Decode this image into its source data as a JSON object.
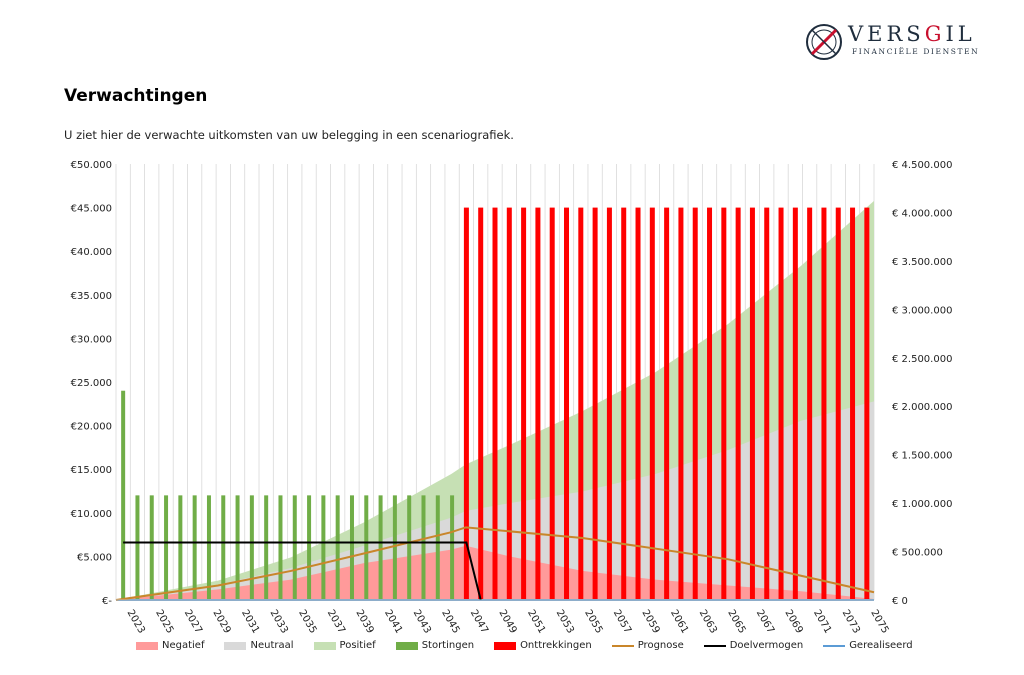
{
  "brand": {
    "name_part1": "VERS",
    "name_part2": "G",
    "name_part3": "IL",
    "tagline": "FINANCIËLE DIENSTEN",
    "accent_color": "#c8102e",
    "dark_color": "#1f2d3d"
  },
  "page": {
    "title": "Verwachtingen",
    "subtitle": "U ziet hier de verwachte uitkomsten van uw belegging in een scenariografiek."
  },
  "legend": [
    {
      "label": "Negatief",
      "kind": "area",
      "color": "#ff9a9a"
    },
    {
      "label": "Neutraal",
      "kind": "area",
      "color": "#d9d9d9"
    },
    {
      "label": "Positief",
      "kind": "area",
      "color": "#c6e0b4"
    },
    {
      "label": "Stortingen",
      "kind": "bar",
      "color": "#70ad47"
    },
    {
      "label": "Onttrekkingen",
      "kind": "bar",
      "color": "#ff0000"
    },
    {
      "label": "Prognose",
      "kind": "line",
      "color": "#c9862a"
    },
    {
      "label": "Doelvermogen",
      "kind": "line",
      "color": "#000000"
    },
    {
      "label": "Gerealiseerd",
      "kind": "line",
      "color": "#5b9bd5"
    }
  ],
  "chart_data": {
    "type": "bar",
    "title": "",
    "xlabel": "",
    "ylabel": "",
    "x_start": 2023,
    "x_end": 2075,
    "x_tick_labels": [
      "2023",
      "2025",
      "2027",
      "2029",
      "2031",
      "2033",
      "2035",
      "2037",
      "2039",
      "2041",
      "2043",
      "2045",
      "2047",
      "2049",
      "2051",
      "2053",
      "2055",
      "2057",
      "2059",
      "2061",
      "2063",
      "2065",
      "2067",
      "2069",
      "2071",
      "2073",
      "2075"
    ],
    "y_left": {
      "lim": [
        0,
        50000
      ],
      "tick_labels": [
        "€-",
        "€5.000",
        "€10.000",
        "€15.000",
        "€20.000",
        "€25.000",
        "€30.000",
        "€35.000",
        "€40.000",
        "€45.000",
        "€50.000"
      ]
    },
    "y_right": {
      "lim": [
        0,
        4500000
      ],
      "tick_labels": [
        "€ 0",
        "€ 500.000",
        "€ 1.000.000",
        "€ 1.500.000",
        "€ 2.000.000",
        "€ 2.500.000",
        "€ 3.000.000",
        "€ 3.500.000",
        "€ 4.000.000",
        "€ 4.500.000"
      ]
    },
    "grid": "vertical",
    "legend_position": "bottom",
    "series": [
      {
        "name": "Stortingen",
        "type": "bar",
        "axis": "left",
        "color": "#70ad47",
        "points": [
          [
            2023,
            24000
          ],
          [
            2024,
            12000
          ],
          [
            2025,
            12000
          ],
          [
            2026,
            12000
          ],
          [
            2027,
            12000
          ],
          [
            2028,
            12000
          ],
          [
            2029,
            12000
          ],
          [
            2030,
            12000
          ],
          [
            2031,
            12000
          ],
          [
            2032,
            12000
          ],
          [
            2033,
            12000
          ],
          [
            2034,
            12000
          ],
          [
            2035,
            12000
          ],
          [
            2036,
            12000
          ],
          [
            2037,
            12000
          ],
          [
            2038,
            12000
          ],
          [
            2039,
            12000
          ],
          [
            2040,
            12000
          ],
          [
            2041,
            12000
          ],
          [
            2042,
            12000
          ],
          [
            2043,
            12000
          ],
          [
            2044,
            12000
          ],
          [
            2045,
            12000
          ],
          [
            2046,
            12000
          ]
        ]
      },
      {
        "name": "Onttrekkingen",
        "type": "bar",
        "axis": "left",
        "color": "#ff0000",
        "x_range": [
          2047,
          2075
        ],
        "value": 45000
      },
      {
        "name": "Negatief",
        "type": "area",
        "axis": "right",
        "color": "#ff9a9a",
        "x": [
          2023,
          2030,
          2035,
          2040,
          2046,
          2047,
          2050,
          2055,
          2060,
          2065,
          2070,
          2075
        ],
        "values": [
          0,
          110000,
          210000,
          380000,
          520000,
          560000,
          450000,
          300000,
          210000,
          150000,
          90000,
          10000
        ]
      },
      {
        "name": "Neutraal",
        "type": "area",
        "axis": "right",
        "color": "#d9d9d9",
        "x": [
          2023,
          2030,
          2035,
          2040,
          2046,
          2047,
          2050,
          2055,
          2060,
          2065,
          2070,
          2075
        ],
        "values": [
          0,
          160000,
          330000,
          560000,
          850000,
          920000,
          1000000,
          1120000,
          1300000,
          1550000,
          1850000,
          2050000
        ]
      },
      {
        "name": "Positief",
        "type": "area",
        "axis": "right",
        "color": "#c6e0b4",
        "x": [
          2023,
          2030,
          2035,
          2040,
          2046,
          2047,
          2050,
          2055,
          2060,
          2065,
          2070,
          2075
        ],
        "values": [
          0,
          200000,
          440000,
          800000,
          1300000,
          1400000,
          1600000,
          1950000,
          2350000,
          2850000,
          3450000,
          4120000
        ]
      },
      {
        "name": "Prognose",
        "type": "line",
        "axis": "right",
        "color": "#c9862a",
        "x": [
          2023,
          2030,
          2035,
          2040,
          2046,
          2047,
          2055,
          2065,
          2075
        ],
        "values": [
          0,
          150000,
          300000,
          480000,
          700000,
          750000,
          640000,
          420000,
          80000
        ]
      },
      {
        "name": "Doelvermogen",
        "type": "line",
        "axis": "left",
        "color": "#000000",
        "x": [
          2023,
          2046,
          2047,
          2048
        ],
        "values": [
          6600,
          6600,
          6600,
          0
        ]
      },
      {
        "name": "Gerealiseerd",
        "type": "line",
        "axis": "left",
        "color": "#5b9bd5",
        "x": [
          2023,
          2075
        ],
        "values": [
          0,
          0
        ]
      }
    ]
  }
}
